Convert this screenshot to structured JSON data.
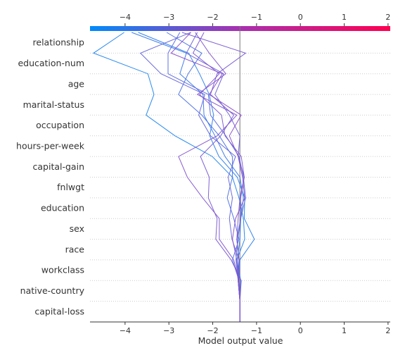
{
  "chart_data": {
    "type": "decision",
    "xlabel": "Model output value",
    "xlim": [
      -4.8,
      2.05
    ],
    "base_value": -1.38,
    "x_ticks": [
      -4,
      -3,
      -2,
      -1,
      0,
      1,
      2
    ],
    "x_tick_labels": [
      "−4",
      "−3",
      "−2",
      "−1",
      "0",
      "1",
      "2"
    ],
    "features": [
      "relationship",
      "education-num",
      "age",
      "marital-status",
      "occupation",
      "hours-per-week",
      "capital-gain",
      "fnlwgt",
      "education",
      "sex",
      "race",
      "workclass",
      "native-country",
      "capital-loss"
    ],
    "colorbar": {
      "from": "#008bfb",
      "to": "#ff0051",
      "mid": "#a830b0"
    },
    "colors": {
      "axis": "#333333",
      "grid": "#cccccc",
      "baseline": "#777777"
    },
    "samples": [
      {
        "color": "#1f85ee",
        "points": [
          -4.02,
          -4.72,
          -3.48,
          -3.34,
          -3.52,
          -2.86,
          -2.01,
          -1.55,
          -1.4,
          -1.3,
          -1.27,
          -1.45,
          -1.36,
          -1.38,
          -1.38
        ]
      },
      {
        "color": "#2a80ea",
        "points": [
          -3.7,
          -2.55,
          -2.3,
          -2.08,
          -1.98,
          -2.07,
          -1.86,
          -1.44,
          -1.27,
          -1.28,
          -1.05,
          -1.38,
          -1.4,
          -1.38,
          -1.38
        ]
      },
      {
        "color": "#3a78e6",
        "points": [
          -3.85,
          -2.6,
          -2.75,
          -2.22,
          -2.2,
          -1.95,
          -1.72,
          -1.38,
          -1.3,
          -1.36,
          -1.38,
          -1.44,
          -1.4,
          -1.38,
          -1.38
        ]
      },
      {
        "color": "#4a70e2",
        "points": [
          -3.05,
          -2.25,
          -2.56,
          -2.78,
          -2.25,
          -1.85,
          -1.55,
          -1.55,
          -1.67,
          -1.52,
          -1.4,
          -1.55,
          -1.4,
          -1.38,
          -1.38
        ]
      },
      {
        "color": "#5a69de",
        "points": [
          -2.75,
          -3.02,
          -3.02,
          -2.1,
          -2.05,
          -1.7,
          -1.4,
          -1.3,
          -1.25,
          -1.36,
          -1.43,
          -1.47,
          -1.42,
          -1.38,
          -1.38
        ]
      },
      {
        "color": "#6464da",
        "points": [
          -2.5,
          -3.65,
          -3.18,
          -2.18,
          -2.32,
          -2.05,
          -1.48,
          -1.65,
          -1.55,
          -1.62,
          -1.56,
          -1.4,
          -1.42,
          -1.38,
          -1.38
        ]
      },
      {
        "color": "#6e5fd6",
        "points": [
          -2.35,
          -2.6,
          -1.75,
          -1.95,
          -1.62,
          -1.38,
          -1.42,
          -1.28,
          -1.36,
          -1.36,
          -1.45,
          -1.4,
          -1.4,
          -1.38,
          -1.38
        ]
      },
      {
        "color": "#785ad2",
        "points": [
          -2.7,
          -1.25,
          -1.9,
          -2.05,
          -1.52,
          -1.82,
          -2.28,
          -2.08,
          -2.1,
          -1.9,
          -1.93,
          -1.58,
          -1.35,
          -1.38,
          -1.38
        ]
      },
      {
        "color": "#8254ce",
        "points": [
          -2.4,
          -2.08,
          -1.7,
          -2.35,
          -1.45,
          -1.9,
          -2.78,
          -2.58,
          -2.23,
          -1.85,
          -1.85,
          -1.52,
          -1.4,
          -1.38,
          -1.38
        ]
      },
      {
        "color": "#8a4fca",
        "points": [
          -2.5,
          -2.95,
          -1.78,
          -2.08,
          -1.35,
          -1.62,
          -1.42,
          -1.32,
          -1.27,
          -1.48,
          -1.55,
          -1.45,
          -1.42,
          -1.38,
          -1.38
        ]
      },
      {
        "color": "#7e57d0",
        "points": [
          -2.2,
          -2.45,
          -1.85,
          -2.3,
          -1.8,
          -1.72,
          -1.35,
          -1.28,
          -1.38,
          -1.42,
          -1.45,
          -1.4,
          -1.42,
          -1.38,
          -1.38
        ]
      }
    ]
  }
}
